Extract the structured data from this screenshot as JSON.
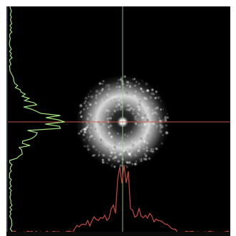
{
  "viewer": {
    "colors": {
      "background": "#000000",
      "frame": "#ffffff",
      "vertical_crosshair": "#8fd07f",
      "horizontal_crosshair": "#d55a4a",
      "horizontal_profile": "#c44a3e",
      "vertical_profile": "#9fe07e",
      "speckle_core": "#ffffff",
      "speckle_ring": "#d9d9d9"
    },
    "icons": {
      "crosshair": "crosshair-icon"
    }
  }
}
